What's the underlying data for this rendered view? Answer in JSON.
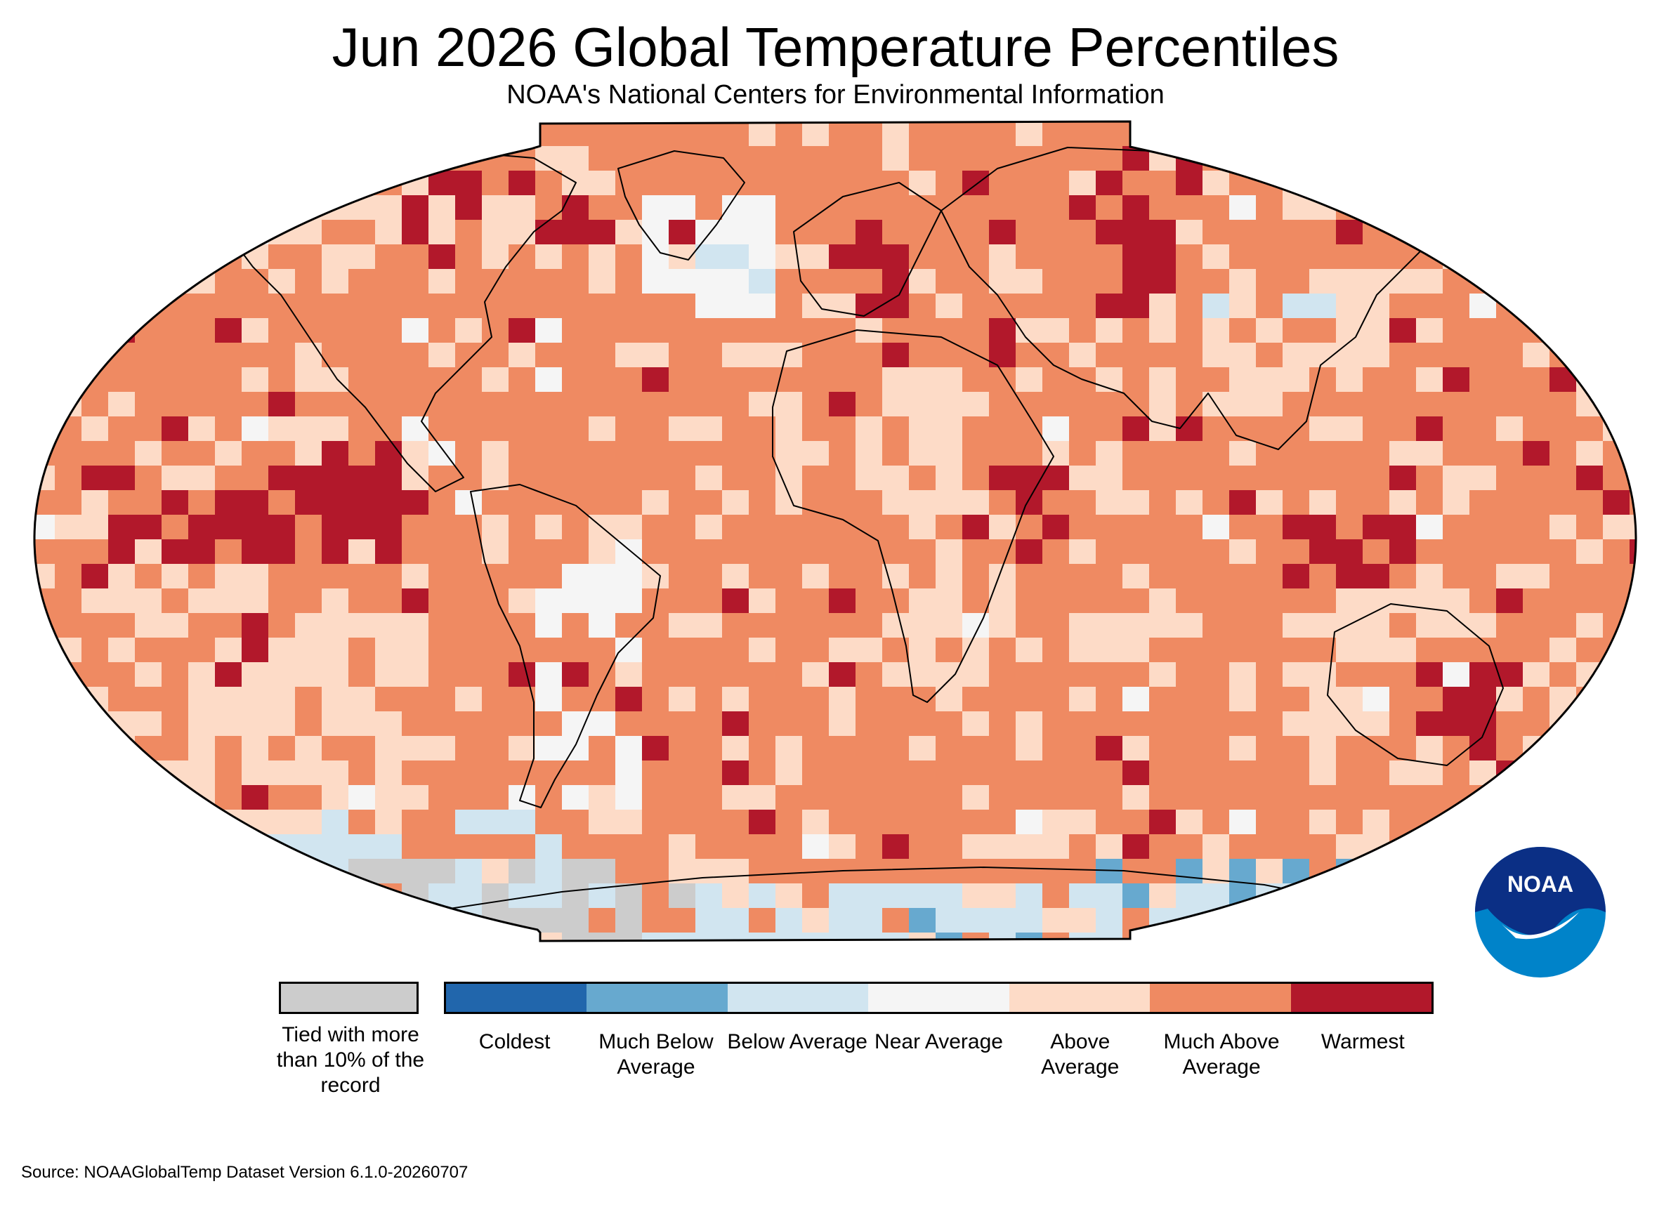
{
  "title": "Jun 2026 Global Temperature Percentiles",
  "subtitle": "NOAA's National Centers for Environmental Information",
  "source": "Source: NOAAGlobalTemp Dataset Version 6.1.0-20260707",
  "logo": {
    "text": "NOAA",
    "colors": {
      "dark": "#0b2f85",
      "light": "#0083c9"
    }
  },
  "legend": {
    "tied": {
      "label": "Tied with more than 10% of the record",
      "color": "#cccccc"
    },
    "categories": [
      {
        "label": "Coldest",
        "color": "#2166ac"
      },
      {
        "label": "Much Below Average",
        "color": "#67a9cf"
      },
      {
        "label": "Below Average",
        "color": "#d1e5f0"
      },
      {
        "label": "Near Average",
        "color": "#f5f5f5"
      },
      {
        "label": "Above Average",
        "color": "#fddbc7"
      },
      {
        "label": "Much Above Average",
        "color": "#ef8a62"
      },
      {
        "label": "Warmest",
        "color": "#b2182b"
      }
    ]
  },
  "map": {
    "projection": "Robinson",
    "background_category": "Much Above Average",
    "regions": [
      {
        "region": "Eastern tropical Pacific",
        "category": "Warmest"
      },
      {
        "region": "Central Siberia",
        "category": "Warmest"
      },
      {
        "region": "Eastern Australia",
        "category": "Warmest"
      },
      {
        "region": "Western Europe",
        "category": "Warmest"
      },
      {
        "region": "Maritime Continent",
        "category": "Warmest"
      },
      {
        "region": "East Africa",
        "category": "Warmest"
      },
      {
        "region": "Southern Ocean south of Australia",
        "category": "Warmest"
      },
      {
        "region": "Northern Canada",
        "category": "Warmest"
      },
      {
        "region": "Greenland",
        "category": "Near Average"
      },
      {
        "region": "North Atlantic",
        "category": "Below Average"
      },
      {
        "region": "Central Asia",
        "category": "Below Average"
      },
      {
        "region": "Western South America",
        "category": "Near Average"
      },
      {
        "region": "Southern Africa",
        "category": "Above Average"
      },
      {
        "region": "North Africa",
        "category": "Above Average"
      },
      {
        "region": "South Pacific",
        "category": "Above Average"
      },
      {
        "region": "Antarctica",
        "category": "Below Average"
      },
      {
        "region": "East Antarctica coast",
        "category": "Much Below Average"
      },
      {
        "region": "Antarctic sea ice zone (Pacific sector)",
        "category": "Tied with more than 10% of the record"
      }
    ]
  }
}
